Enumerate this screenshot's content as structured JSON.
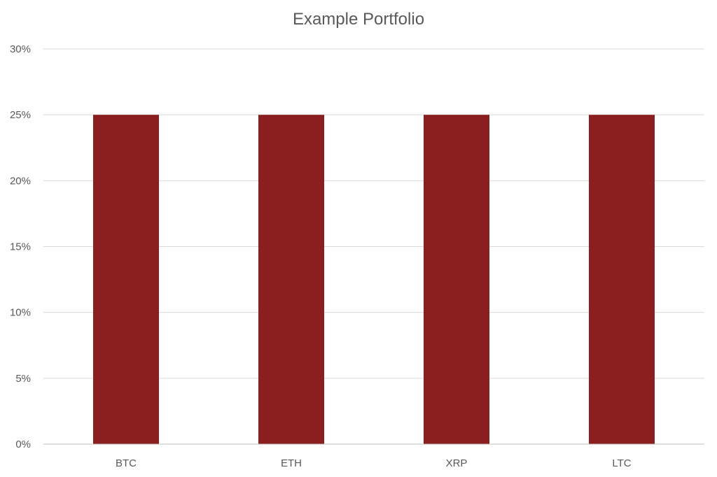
{
  "chart_data": {
    "type": "bar",
    "title": "Example Portfolio",
    "xlabel": "",
    "ylabel": "",
    "categories": [
      "BTC",
      "ETH",
      "XRP",
      "LTC"
    ],
    "values": [
      25,
      25,
      25,
      25
    ],
    "ylim": [
      0,
      30
    ],
    "yticks": [
      0,
      5,
      10,
      15,
      20,
      25,
      30
    ],
    "ytick_format": "percent",
    "grid": true,
    "legend": "none",
    "colors": {
      "bar": "#8B1E1F",
      "grid": "#D9D9D9",
      "axis": "#BFBFBF",
      "text": "#595959"
    }
  }
}
